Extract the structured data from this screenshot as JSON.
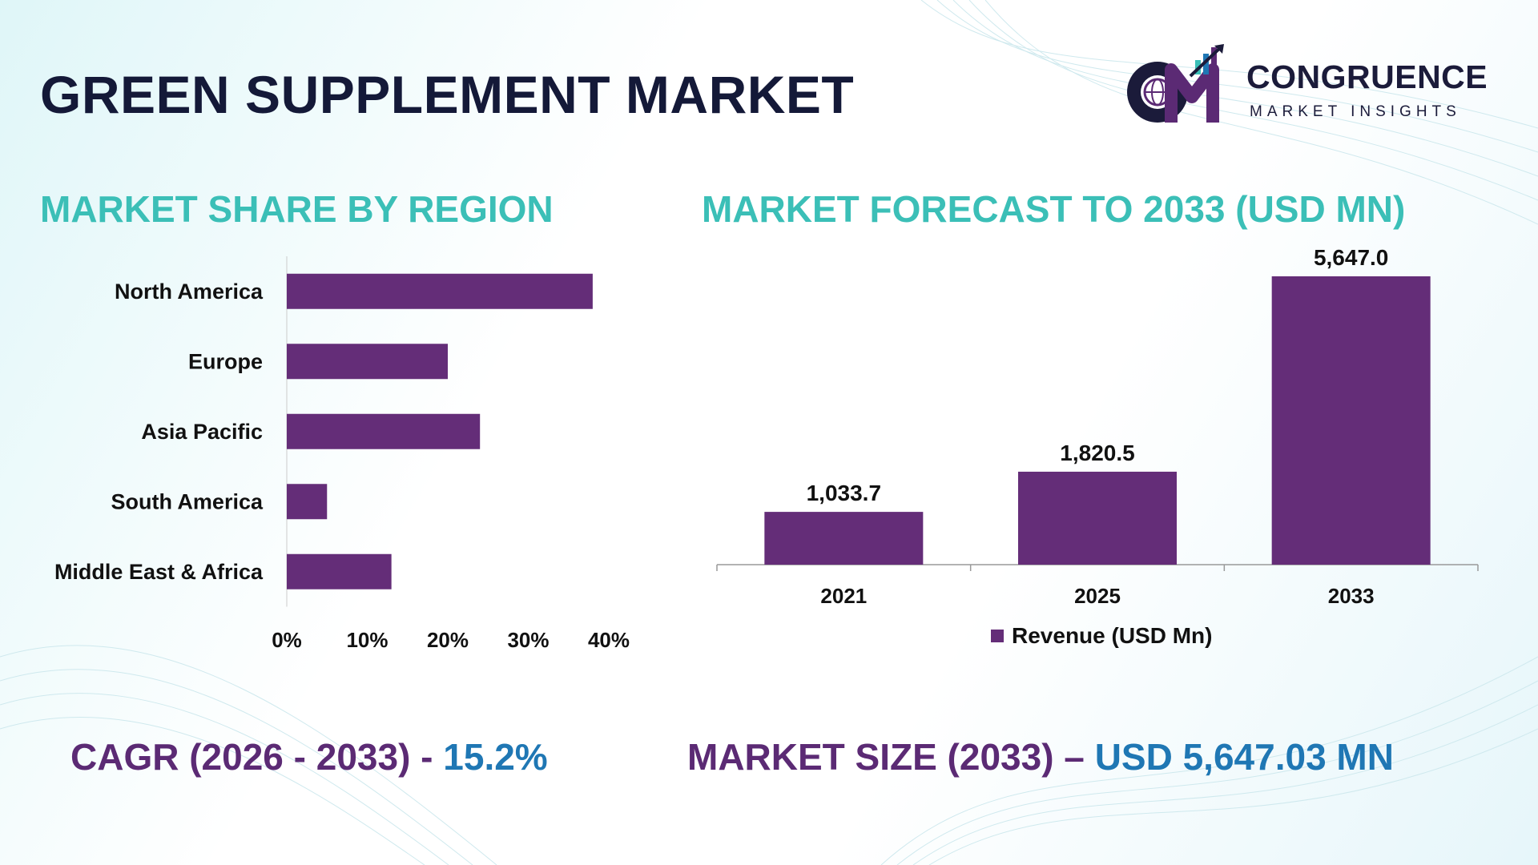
{
  "title": "GREEN SUPPLEMENT MARKET",
  "logo": {
    "name": "CONGRUENCE",
    "tagline": "MARKET INSIGHTS"
  },
  "colors": {
    "bar": "#642d78",
    "section_title": "#3bbfb7",
    "stat_label": "#5b2a74",
    "stat_value": "#1f77b4",
    "title": "#141938"
  },
  "region_section": {
    "title": "MARKET SHARE BY REGION"
  },
  "forecast_section": {
    "title": "MARKET FORECAST TO 2033 (USD MN)"
  },
  "stats": {
    "cagr_label": "CAGR (2026 - 2033) -",
    "cagr_value": "15.2%",
    "size_label": "MARKET SIZE (2033) –",
    "size_value": "USD 5,647.03 MN"
  },
  "chart_data": [
    {
      "type": "bar",
      "orientation": "horizontal",
      "title": "MARKET SHARE BY REGION",
      "categories": [
        "North America",
        "Europe",
        "Asia Pacific",
        "South America",
        "Middle East & Africa"
      ],
      "values": [
        38,
        20,
        24,
        5,
        13
      ],
      "unit": "%",
      "xlim": [
        0,
        40
      ],
      "xticks": [
        "0%",
        "10%",
        "20%",
        "30%",
        "40%"
      ],
      "grid": false,
      "legend": "none"
    },
    {
      "type": "bar",
      "orientation": "vertical",
      "title": "MARKET FORECAST TO 2033 (USD MN)",
      "categories": [
        "2021",
        "2025",
        "2033"
      ],
      "series": [
        {
          "name": "Revenue (USD Mn)",
          "values": [
            1033.7,
            1820.5,
            5647.0
          ]
        }
      ],
      "data_labels": [
        "1,033.7",
        "1,820.5",
        "5,647.0"
      ],
      "ylim": [
        0,
        5647.0
      ],
      "grid": false,
      "legend": "bottom"
    }
  ]
}
